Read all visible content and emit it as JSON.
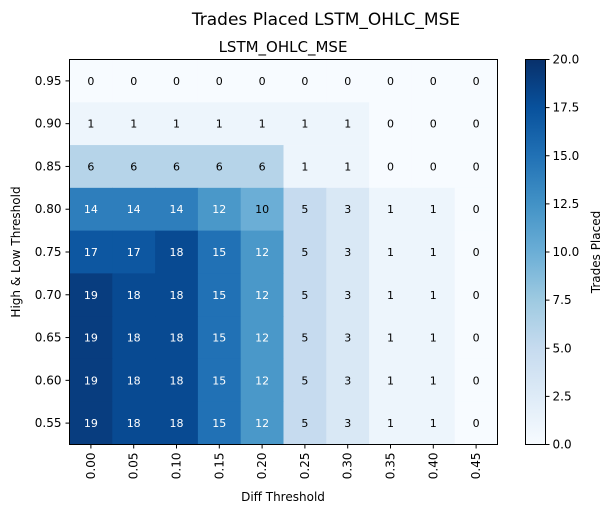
{
  "chart_data": {
    "type": "heatmap",
    "suptitle": "Trades Placed     LSTM_OHLC_MSE",
    "title": "LSTM_OHLC_MSE",
    "xlabel": "Diff Threshold",
    "ylabel": "High & Low Threshold",
    "colorbar_label": "Trades Placed",
    "colormap": "Blues",
    "vmin": 0,
    "vmax": 20,
    "colorbar_ticks": [
      "0.0",
      "2.5",
      "5.0",
      "7.5",
      "10.0",
      "12.5",
      "15.0",
      "17.5",
      "20.0"
    ],
    "x_categories": [
      "0.00",
      "0.05",
      "0.10",
      "0.15",
      "0.20",
      "0.25",
      "0.30",
      "0.35",
      "0.40",
      "0.45"
    ],
    "y_categories": [
      "0.95",
      "0.90",
      "0.85",
      "0.80",
      "0.75",
      "0.70",
      "0.65",
      "0.60",
      "0.55"
    ],
    "values": [
      [
        0,
        0,
        0,
        0,
        0,
        0,
        0,
        0,
        0,
        0
      ],
      [
        1,
        1,
        1,
        1,
        1,
        1,
        1,
        0,
        0,
        0
      ],
      [
        6,
        6,
        6,
        6,
        6,
        1,
        1,
        0,
        0,
        0
      ],
      [
        14,
        14,
        14,
        12,
        10,
        5,
        3,
        1,
        1,
        0
      ],
      [
        17,
        17,
        18,
        15,
        12,
        5,
        3,
        1,
        1,
        0
      ],
      [
        19,
        18,
        18,
        15,
        12,
        5,
        3,
        1,
        1,
        0
      ],
      [
        19,
        18,
        18,
        15,
        12,
        5,
        3,
        1,
        1,
        0
      ],
      [
        19,
        18,
        18,
        15,
        12,
        5,
        3,
        1,
        1,
        0
      ],
      [
        19,
        18,
        18,
        15,
        12,
        5,
        3,
        1,
        1,
        0
      ]
    ]
  }
}
